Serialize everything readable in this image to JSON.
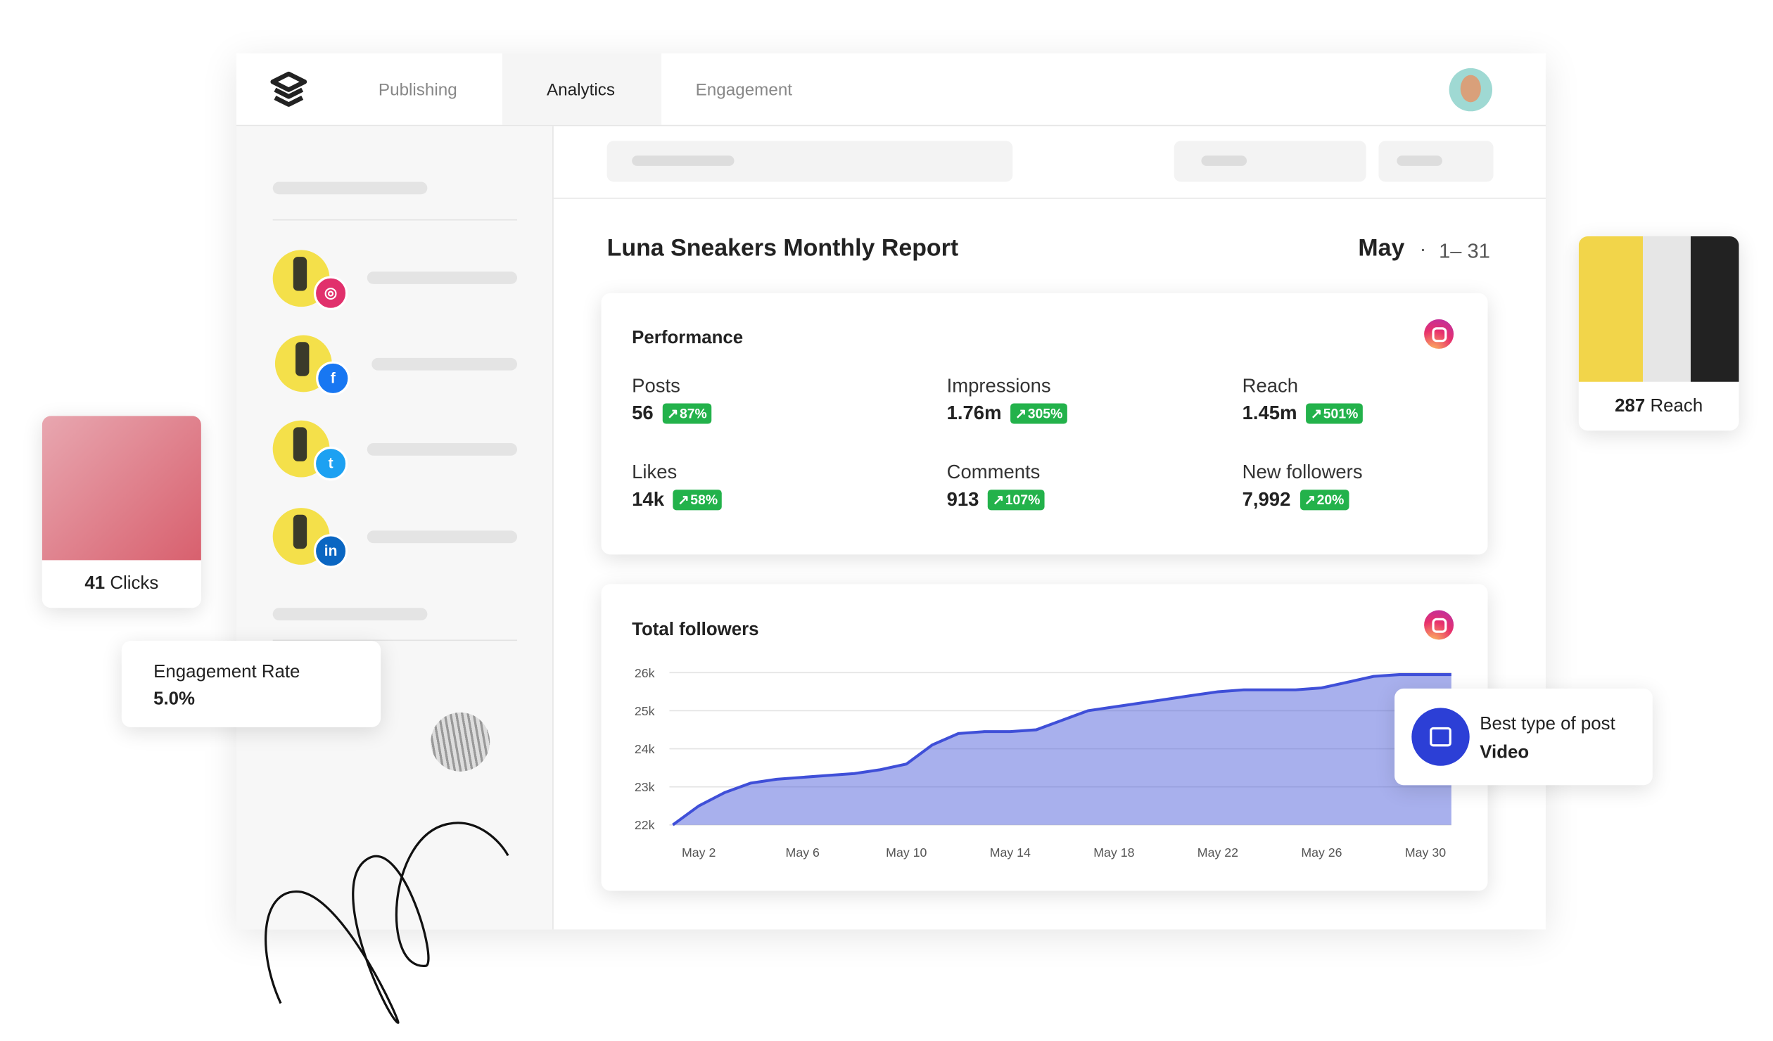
{
  "nav": {
    "tabs": [
      "Publishing",
      "Analytics",
      "Engagement"
    ]
  },
  "report": {
    "title": "Luna Sneakers Monthly Report",
    "month": "May",
    "range": "1– 31"
  },
  "performance": {
    "title": "Performance",
    "metrics": [
      {
        "label": "Posts",
        "value": "56",
        "change": "87%"
      },
      {
        "label": "Impressions",
        "value": "1.76m",
        "change": "305%"
      },
      {
        "label": "Reach",
        "value": "1.45m",
        "change": "501%"
      },
      {
        "label": "Likes",
        "value": "14k",
        "change": "58%"
      },
      {
        "label": "Comments",
        "value": "913",
        "change": "107%"
      },
      {
        "label": "New followers",
        "value": "7,992",
        "change": "20%"
      }
    ]
  },
  "chart_data": {
    "type": "area",
    "title": "Total followers",
    "categories": [
      null,
      "May 2",
      null,
      null,
      null,
      "May 6",
      null,
      null,
      null,
      "May 10",
      null,
      null,
      null,
      "May 14",
      null,
      null,
      null,
      "May 18",
      null,
      null,
      null,
      "May 22",
      null,
      null,
      null,
      "May 26",
      null,
      null,
      null,
      "May 30",
      null
    ],
    "values": [
      22000,
      22500,
      22850,
      23100,
      23200,
      23250,
      23300,
      23350,
      23450,
      23600,
      24100,
      24400,
      24450,
      24450,
      24500,
      24750,
      25000,
      25100,
      25200,
      25300,
      25400,
      25500,
      25550,
      25550,
      25550,
      25600,
      25750,
      25900,
      25950,
      25950,
      25950
    ],
    "color": "#3f4fd8",
    "ylim": [
      22000,
      26000
    ],
    "yticks": [
      {
        "value": 22000,
        "label": "22k"
      },
      {
        "value": 23000,
        "label": "23k"
      },
      {
        "value": 24000,
        "label": "24k"
      },
      {
        "value": 25000,
        "label": "25k"
      },
      {
        "value": 26000,
        "label": "26k"
      }
    ],
    "grid": true
  },
  "cards": {
    "clicks": {
      "value": "41",
      "label": "Clicks"
    },
    "reach": {
      "value": "287",
      "label": "Reach"
    },
    "engagement": {
      "label": "Engagement Rate",
      "value": "5.0%"
    },
    "best": {
      "label": "Best type of post",
      "value": "Video"
    }
  }
}
